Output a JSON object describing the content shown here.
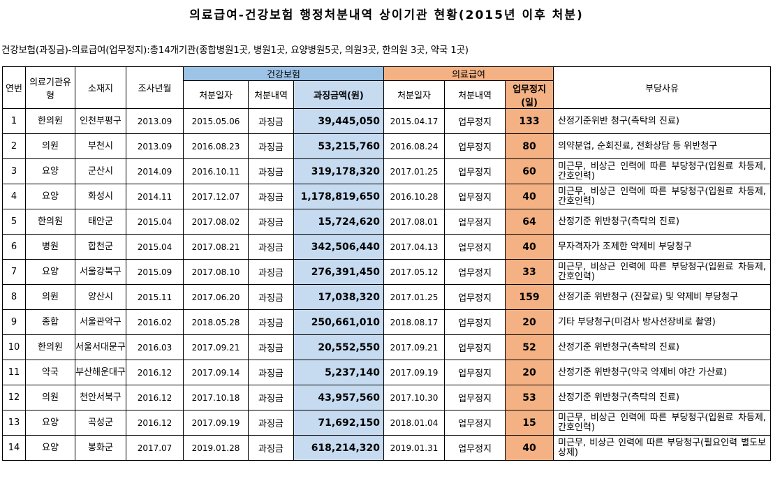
{
  "title": "의료급여-건강보험 행정처분내역 상이기관 현황(2015년 이후 처분)",
  "subtitle": "건강보험(과징금)-의료급여(업무정지):총14개기관(종합병원1곳, 병원1곳, 요양병원5곳, 의원3곳, 한의원 3곳, 약국 1곳)",
  "headers": {
    "no": "연번",
    "type": "의료기관유형",
    "location": "소재지",
    "survey": "조사년월",
    "health_group": "건강보험",
    "medical_group": "의료급여",
    "h_date": "처분일자",
    "h_action": "처분내역",
    "h_amount": "과징금액(원)",
    "m_date": "처분일자",
    "m_action": "처분내역",
    "m_days": "업무정지(일)",
    "reason": "부당사유"
  },
  "rows": [
    {
      "no": "1",
      "type": "한의원",
      "location": "인천부평구",
      "survey": "2013.09",
      "h_date": "2015.05.06",
      "h_action": "과징금",
      "h_amount": "39,445,050",
      "m_date": "2015.04.17",
      "m_action": "업무정지",
      "m_days": "133",
      "reason": "산정기준위반 청구(측탁의 진료)"
    },
    {
      "no": "2",
      "type": "의원",
      "location": "부천시",
      "survey": "2013.09",
      "h_date": "2016.08.23",
      "h_action": "과징금",
      "h_amount": "53,215,760",
      "m_date": "2016.08.24",
      "m_action": "업무정지",
      "m_days": "80",
      "reason": "의약분업, 순회진료, 전화상담 등 위반청구"
    },
    {
      "no": "3",
      "type": "요양",
      "location": "군산시",
      "survey": "2014.09",
      "h_date": "2016.10.11",
      "h_action": "과징금",
      "h_amount": "319,178,320",
      "m_date": "2017.01.25",
      "m_action": "업무정지",
      "m_days": "60",
      "reason": "미근무, 비상근 인력에 따른 부당청구(입원료 차등제, 간호인력)"
    },
    {
      "no": "4",
      "type": "요양",
      "location": "화성시",
      "survey": "2014.11",
      "h_date": "2017.12.07",
      "h_action": "과징금",
      "h_amount": "1,178,819,650",
      "m_date": "2016.10.28",
      "m_action": "업무정지",
      "m_days": "40",
      "reason": "미근무, 비상근 인력에 따른 부당청구(입원료 차등제, 간호인력)"
    },
    {
      "no": "5",
      "type": "한의원",
      "location": "태안군",
      "survey": "2015.04",
      "h_date": "2017.08.02",
      "h_action": "과징금",
      "h_amount": "15,724,620",
      "m_date": "2017.08.01",
      "m_action": "업무정지",
      "m_days": "64",
      "reason": "산정기준 위반청구(측탁의 진료)"
    },
    {
      "no": "6",
      "type": "병원",
      "location": "합천군",
      "survey": "2015.04",
      "h_date": "2017.08.21",
      "h_action": "과징금",
      "h_amount": "342,506,440",
      "m_date": "2017.04.13",
      "m_action": "업무정지",
      "m_days": "40",
      "reason": "무자격자가 조제한 약제비 부당청구"
    },
    {
      "no": "7",
      "type": "요양",
      "location": "서울강북구",
      "survey": "2015.09",
      "h_date": "2017.08.10",
      "h_action": "과징금",
      "h_amount": "276,391,450",
      "m_date": "2017.05.12",
      "m_action": "업무정지",
      "m_days": "33",
      "reason": "미근무, 비상근 인력에 따른 부당청구(입원료 차등제, 간호인력)"
    },
    {
      "no": "8",
      "type": "의원",
      "location": "양산시",
      "survey": "2015.11",
      "h_date": "2017.06.20",
      "h_action": "과징금",
      "h_amount": "17,038,320",
      "m_date": "2017.01.25",
      "m_action": "업무정지",
      "m_days": "159",
      "reason": "산정기준 위반청구 (진찰료) 및 약제비 부당청구"
    },
    {
      "no": "9",
      "type": "종합",
      "location": "서울관악구",
      "survey": "2016.02",
      "h_date": "2018.05.28",
      "h_action": "과징금",
      "h_amount": "250,661,010",
      "m_date": "2018.08.17",
      "m_action": "업무정지",
      "m_days": "20",
      "reason": "기타 부당청구(미검사 방사선장비로 촬영)"
    },
    {
      "no": "10",
      "type": "한의원",
      "location": "서울서대문구",
      "survey": "2016.03",
      "h_date": "2017.09.21",
      "h_action": "과징금",
      "h_amount": "20,552,550",
      "m_date": "2017.09.21",
      "m_action": "업무정지",
      "m_days": "52",
      "reason": "산정기준 위반청구(측탁의 진료)"
    },
    {
      "no": "11",
      "type": "약국",
      "location": "부산해운대구",
      "survey": "2016.12",
      "h_date": "2017.09.14",
      "h_action": "과징금",
      "h_amount": "5,237,140",
      "m_date": "2017.09.19",
      "m_action": "업무정지",
      "m_days": "20",
      "reason": "산정기준 위반청구(약국 약제비 야간 가산료)"
    },
    {
      "no": "12",
      "type": "의원",
      "location": "천안서북구",
      "survey": "2016.12",
      "h_date": "2017.10.18",
      "h_action": "과징금",
      "h_amount": "43,957,560",
      "m_date": "2017.10.30",
      "m_action": "업무정지",
      "m_days": "53",
      "reason": "산정기준 위반청구(측탁의 진료)"
    },
    {
      "no": "13",
      "type": "요양",
      "location": "곡성군",
      "survey": "2016.12",
      "h_date": "2017.09.19",
      "h_action": "과징금",
      "h_amount": "71,692,150",
      "m_date": "2018.01.04",
      "m_action": "업무정지",
      "m_days": "15",
      "reason": "미근무, 비상근 인력에 따른 부당청구(입원료 차등제, 간호인력)"
    },
    {
      "no": "14",
      "type": "요양",
      "location": "봉화군",
      "survey": "2017.07",
      "h_date": "2019.01.28",
      "h_action": "과징금",
      "h_amount": "618,214,320",
      "m_date": "2019.01.31",
      "m_action": "업무정지",
      "m_days": "40",
      "reason": "미근무, 비상근 인력에 따른 부당청구(필요인력 별도보상제)"
    }
  ]
}
